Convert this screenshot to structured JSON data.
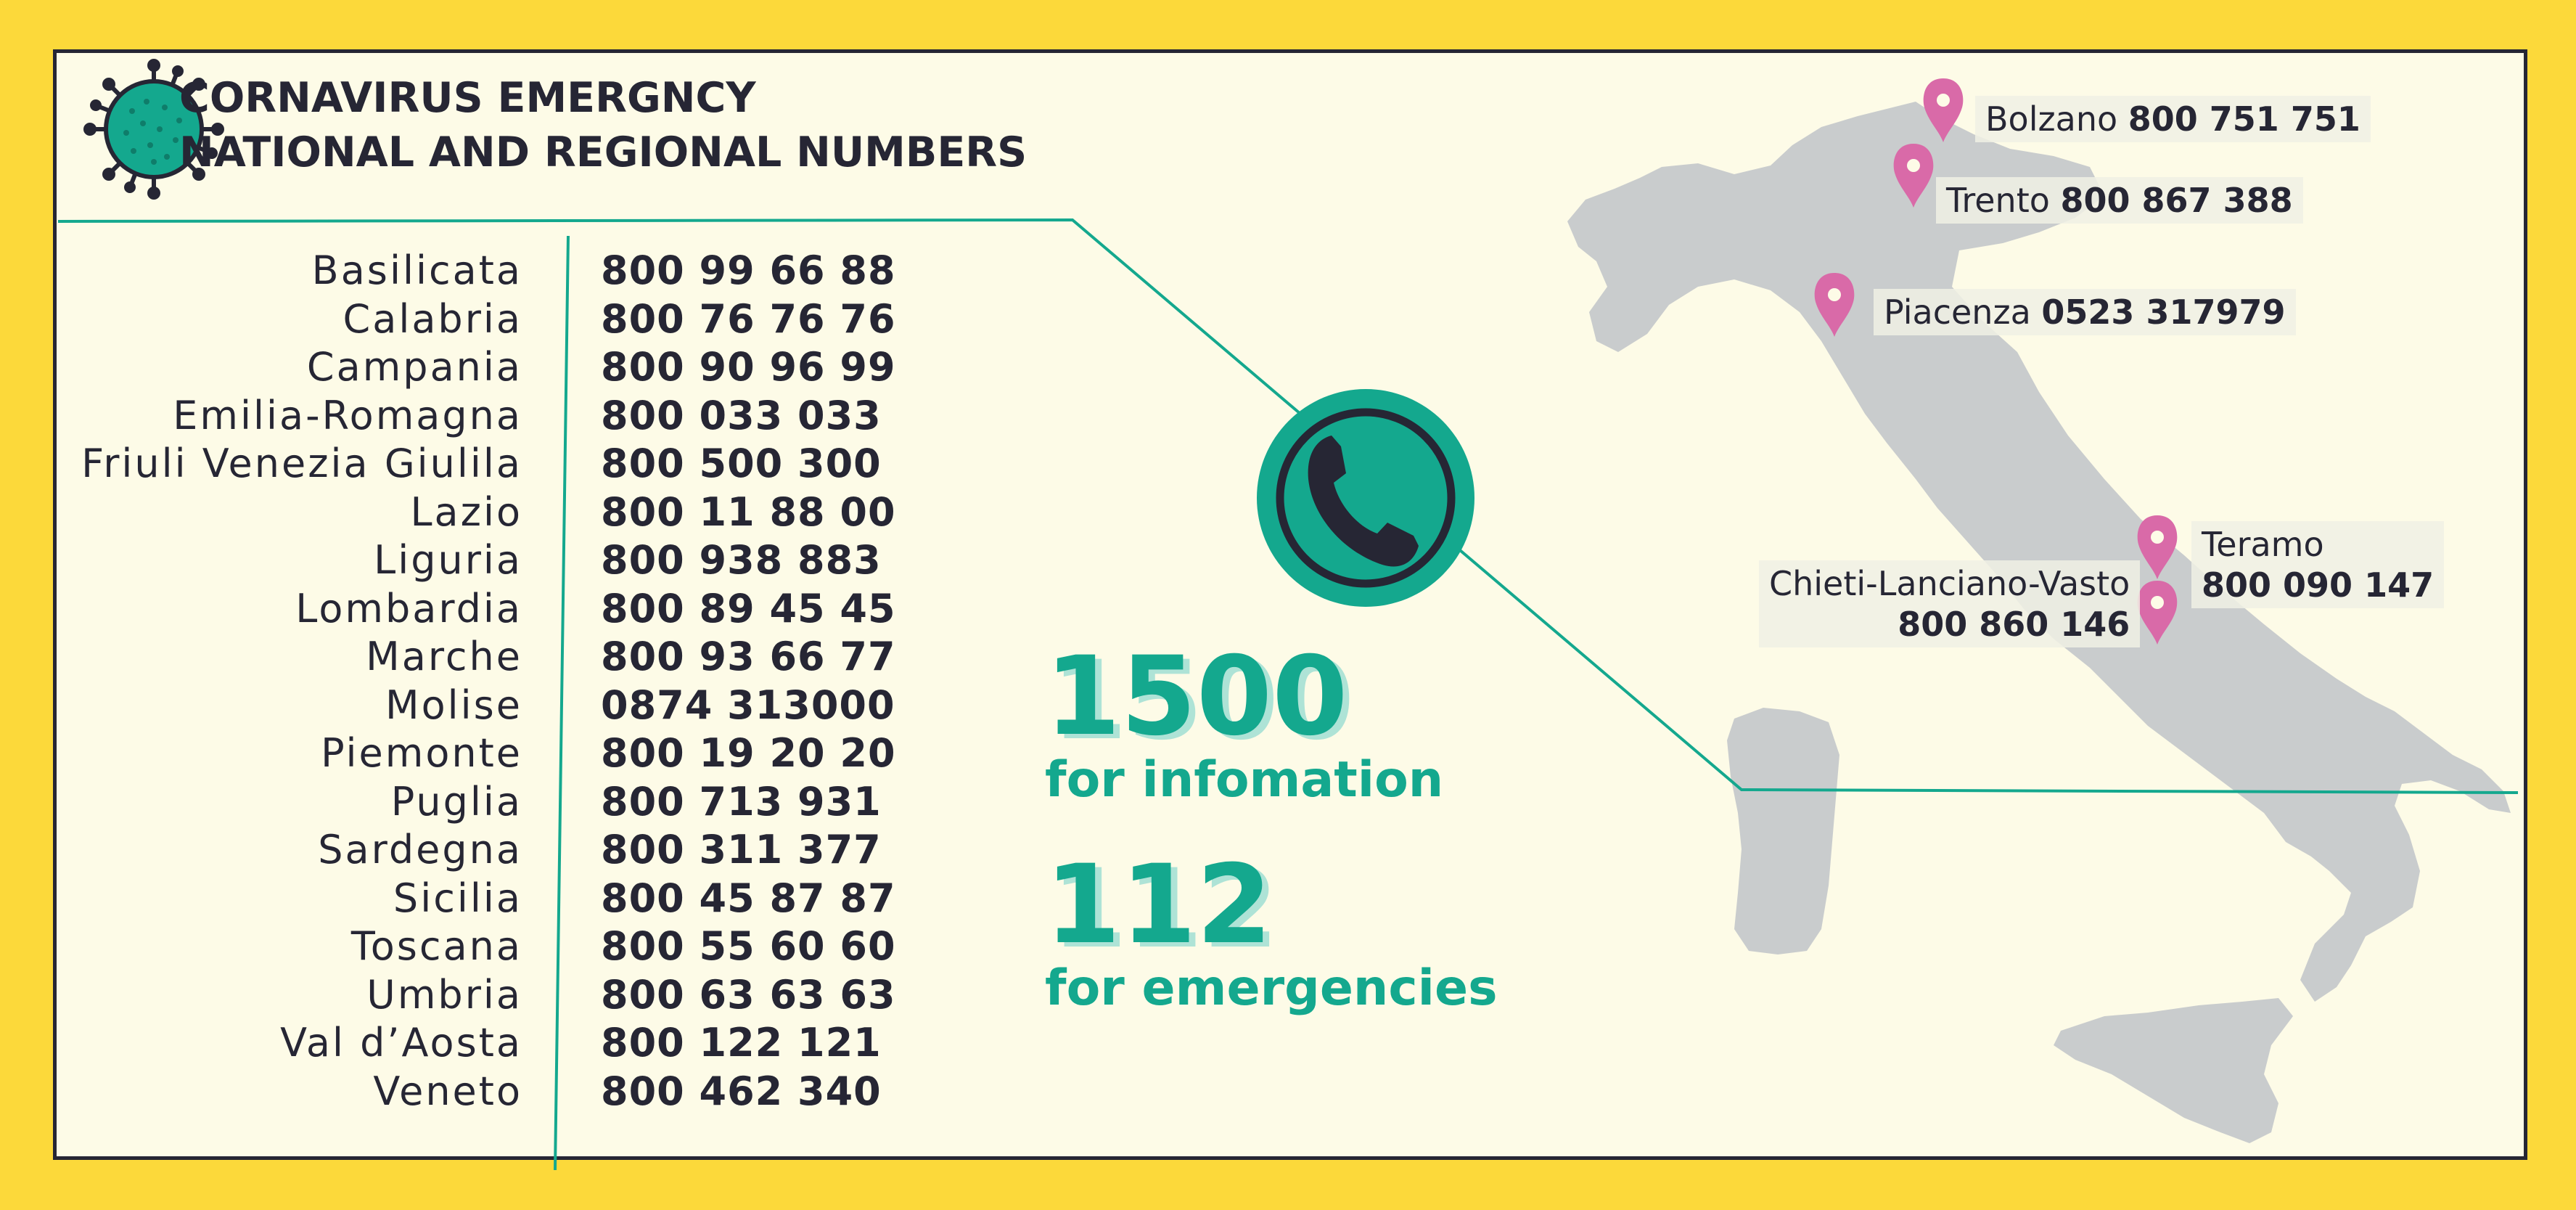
{
  "title": {
    "line1": "CORNAVIRUS EMERGNCY",
    "line2": "NATIONAL AND REGIONAL NUMBERS"
  },
  "regions": [
    {
      "name": "Basilicata",
      "number": "800 99 66 88"
    },
    {
      "name": "Calabria",
      "number": "800 76 76 76"
    },
    {
      "name": "Campania",
      "number": "800 90 96 99"
    },
    {
      "name": "Emilia-Romagna",
      "number": "800 033 033"
    },
    {
      "name": "Friuli Venezia Giulila",
      "number": "800 500 300"
    },
    {
      "name": "Lazio",
      "number": "800 11 88 00"
    },
    {
      "name": "Liguria",
      "number": "800 938 883"
    },
    {
      "name": "Lombardia",
      "number": "800 89 45 45"
    },
    {
      "name": "Marche",
      "number": "800 93 66 77"
    },
    {
      "name": "Molise",
      "number": "0874 313000"
    },
    {
      "name": "Piemonte",
      "number": "800 19 20 20"
    },
    {
      "name": "Puglia",
      "number": "800 713 931"
    },
    {
      "name": "Sardegna",
      "number": "800 311 377"
    },
    {
      "name": "Sicilia",
      "number": "800 45 87 87"
    },
    {
      "name": "Toscana",
      "number": "800 55 60 60"
    },
    {
      "name": "Umbria",
      "number": "800 63 63 63"
    },
    {
      "name": "Val d’Aosta",
      "number": "800 122 121"
    },
    {
      "name": "Veneto",
      "number": "800 462 340"
    }
  ],
  "info": {
    "info_number": "1500",
    "info_label": "for infomation",
    "emergency_number": "112",
    "emergency_label": "for emergencies"
  },
  "cities": {
    "bolzano": {
      "name": "Bolzano",
      "number": "800 751 751"
    },
    "trento": {
      "name": "Trento",
      "number": "800 867 388"
    },
    "piacenza": {
      "name": "Piacenza",
      "number": "0523 317979"
    },
    "teramo": {
      "name": "Teramo",
      "number": "800 090 147"
    },
    "chieti": {
      "name": "Chieti-Lanciano-Vasto",
      "number": "800 860 146"
    }
  },
  "colors": {
    "background": "#fcd93a",
    "panel": "#fdfbe7",
    "text": "#262634",
    "accent": "#14a88e",
    "accent_shadow": "#aee3d6",
    "map": "#c9cccd",
    "pin": "#d96aa8"
  },
  "icons": {
    "virus": "virus-icon",
    "phone": "phone-icon",
    "pin": "map-pin-icon"
  }
}
